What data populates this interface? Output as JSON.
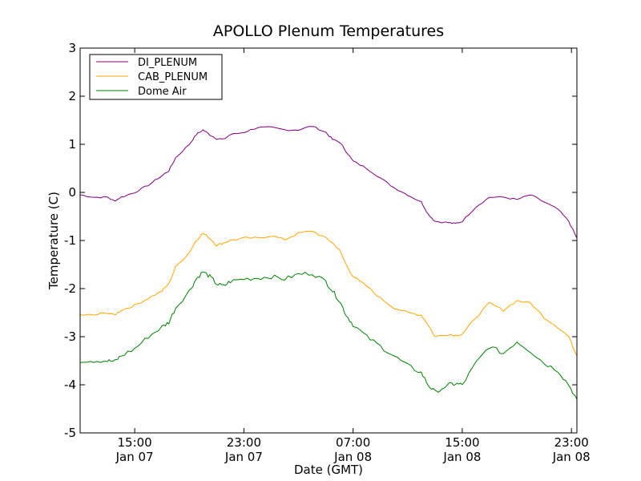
{
  "chart_data": {
    "type": "line",
    "title": "APOLLO Plenum Temperatures",
    "xlabel": "Date (GMT)",
    "ylabel": "Temperature (C)",
    "xlim_hours": [
      11.0,
      47.4
    ],
    "ylim": [
      -5,
      3
    ],
    "yticks": [
      {
        "value": 3,
        "label": "3"
      },
      {
        "value": 2,
        "label": "2"
      },
      {
        "value": 1,
        "label": "1"
      },
      {
        "value": 0,
        "label": "0"
      },
      {
        "value": -1,
        "label": "-1"
      },
      {
        "value": -2,
        "label": "-2"
      },
      {
        "value": -3,
        "label": "-3"
      },
      {
        "value": -4,
        "label": "-4"
      },
      {
        "value": -5,
        "label": "-5"
      }
    ],
    "xticks": [
      {
        "hours": 15,
        "time": "15:00",
        "date": "Jan 07"
      },
      {
        "hours": 23,
        "time": "23:00",
        "date": "Jan 07"
      },
      {
        "hours": 31,
        "time": "07:00",
        "date": "Jan 08"
      },
      {
        "hours": 39,
        "time": "15:00",
        "date": "Jan 08"
      },
      {
        "hours": 47,
        "time": "23:00",
        "date": "Jan 08"
      }
    ],
    "legend_position": "top-left",
    "series": [
      {
        "name": "DI_PLENUM",
        "color": "#800080",
        "x_hours": [
          11.0,
          12.0,
          13.0,
          13.5,
          14.0,
          15.0,
          16.0,
          17.0,
          17.5,
          18.0,
          19.0,
          19.5,
          20.0,
          20.5,
          21.0,
          21.5,
          22.0,
          23.0,
          24.0,
          25.0,
          26.0,
          27.0,
          28.0,
          29.0,
          29.5,
          30.0,
          30.5,
          31.0,
          32.0,
          33.0,
          34.0,
          35.0,
          36.0,
          36.5,
          37.0,
          38.0,
          38.5,
          39.0,
          40.0,
          41.0,
          42.0,
          43.0,
          44.0,
          45.0,
          46.0,
          46.8,
          47.4
        ],
        "values": [
          -0.05,
          -0.1,
          -0.1,
          -0.18,
          -0.1,
          0.0,
          0.15,
          0.35,
          0.45,
          0.72,
          1.0,
          1.2,
          1.3,
          1.2,
          1.12,
          1.1,
          1.2,
          1.25,
          1.35,
          1.35,
          1.3,
          1.3,
          1.38,
          1.25,
          1.1,
          1.05,
          0.85,
          0.65,
          0.5,
          0.3,
          0.1,
          -0.05,
          -0.2,
          -0.45,
          -0.6,
          -0.63,
          -0.65,
          -0.6,
          -0.3,
          -0.1,
          -0.1,
          -0.15,
          -0.05,
          -0.2,
          -0.35,
          -0.6,
          -0.95
        ]
      },
      {
        "name": "CAB_PLENUM",
        "color": "#FFA500",
        "x_hours": [
          11.0,
          12.0,
          13.0,
          13.5,
          14.0,
          15.0,
          16.0,
          17.0,
          17.5,
          18.0,
          19.0,
          19.5,
          20.0,
          20.5,
          21.0,
          21.5,
          22.0,
          23.0,
          24.0,
          25.0,
          26.0,
          27.0,
          28.0,
          29.0,
          29.5,
          30.0,
          30.5,
          31.0,
          32.0,
          33.0,
          34.0,
          35.0,
          36.0,
          36.5,
          37.0,
          38.0,
          38.5,
          39.0,
          40.0,
          41.0,
          42.0,
          43.0,
          44.0,
          45.0,
          46.0,
          46.8,
          47.4
        ],
        "values": [
          -2.55,
          -2.55,
          -2.5,
          -2.55,
          -2.45,
          -2.35,
          -2.2,
          -2.05,
          -1.9,
          -1.55,
          -1.25,
          -1.0,
          -0.85,
          -0.95,
          -1.1,
          -1.05,
          -1.0,
          -0.95,
          -0.95,
          -0.9,
          -0.98,
          -0.85,
          -0.8,
          -0.95,
          -1.05,
          -1.2,
          -1.5,
          -1.75,
          -1.95,
          -2.2,
          -2.4,
          -2.5,
          -2.55,
          -2.75,
          -3.0,
          -2.95,
          -2.97,
          -2.95,
          -2.6,
          -2.3,
          -2.45,
          -2.25,
          -2.3,
          -2.6,
          -2.8,
          -3.0,
          -3.4
        ]
      },
      {
        "name": "Dome Air",
        "color": "#008000",
        "x_hours": [
          11.0,
          12.0,
          13.0,
          13.5,
          14.0,
          15.0,
          16.0,
          17.0,
          17.5,
          18.0,
          19.0,
          19.5,
          20.0,
          20.5,
          21.0,
          21.5,
          22.0,
          23.0,
          24.0,
          25.0,
          26.0,
          27.0,
          28.0,
          29.0,
          29.5,
          30.0,
          30.5,
          31.0,
          32.0,
          33.0,
          34.0,
          35.0,
          36.0,
          36.5,
          37.0,
          38.0,
          38.5,
          39.0,
          40.0,
          41.0,
          42.0,
          43.0,
          44.0,
          45.0,
          46.0,
          46.8,
          47.4
        ],
        "values": [
          -3.5,
          -3.5,
          -3.5,
          -3.52,
          -3.4,
          -3.25,
          -3.0,
          -2.8,
          -2.7,
          -2.4,
          -2.05,
          -1.8,
          -1.65,
          -1.75,
          -1.9,
          -1.95,
          -1.85,
          -1.8,
          -1.78,
          -1.75,
          -1.8,
          -1.7,
          -1.68,
          -1.85,
          -2.05,
          -2.25,
          -2.55,
          -2.75,
          -3.0,
          -3.2,
          -3.4,
          -3.6,
          -3.75,
          -4.0,
          -4.15,
          -4.0,
          -3.98,
          -4.0,
          -3.55,
          -3.2,
          -3.35,
          -3.1,
          -3.3,
          -3.55,
          -3.7,
          -4.0,
          -4.3
        ]
      }
    ]
  }
}
